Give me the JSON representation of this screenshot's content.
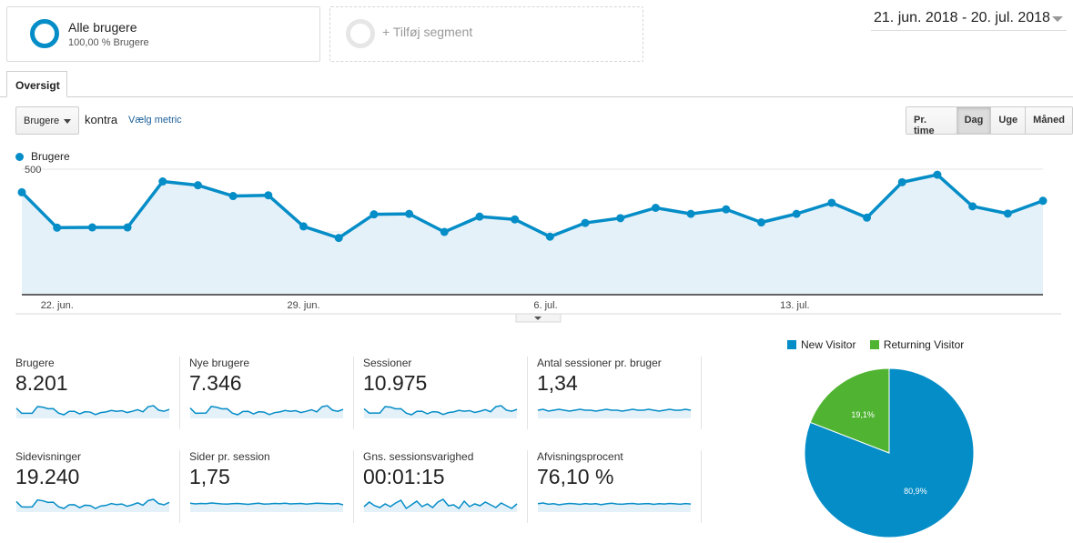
{
  "segments": {
    "all": {
      "title": "Alle brugere",
      "subtitle": "100,00 % Brugere"
    },
    "add_label": "+ Tilføj segment"
  },
  "date_range": "21. jun. 2018 - 20. jul. 2018",
  "tabs": {
    "overview": "Oversigt"
  },
  "controls": {
    "metric_select": "Brugere",
    "vs_label": "kontra",
    "choose_metric": "Vælg metric",
    "periods": [
      "Pr. time",
      "Dag",
      "Uge",
      "Måned"
    ],
    "active_period": "Dag"
  },
  "colors": {
    "accent": "#058dc7",
    "fill": "#e5f1f9",
    "returning": "#50b432"
  },
  "chart_data": [
    {
      "type": "area",
      "series": [
        {
          "name": "Brugere",
          "values": [
            408,
            267,
            268,
            268,
            451,
            436,
            393,
            396,
            272,
            226,
            320,
            322,
            250,
            311,
            300,
            231,
            286,
            305,
            346,
            322,
            340,
            288,
            322,
            366,
            307,
            448,
            478,
            352,
            323,
            374
          ]
        }
      ],
      "x_ticks": [
        "22. jun.",
        "29. jun.",
        "6. jul.",
        "13. jul."
      ],
      "x_tick_indices": [
        1,
        8,
        15,
        22
      ],
      "y_ticks": [
        "500",
        "250"
      ],
      "y_tick_values": [
        500,
        250
      ],
      "ylim": [
        0,
        500
      ]
    },
    {
      "type": "pie",
      "legend": [
        "New Visitor",
        "Returning Visitor"
      ],
      "values": [
        80.9,
        19.1
      ],
      "labels": [
        "80,9%",
        "19,1%"
      ],
      "colors": [
        "#058dc7",
        "#50b432"
      ]
    }
  ],
  "metrics": [
    {
      "label": "Brugere",
      "value": "8.201",
      "spark": [
        408,
        267,
        268,
        268,
        451,
        436,
        393,
        396,
        272,
        226,
        320,
        322,
        250,
        311,
        300,
        231,
        286,
        305,
        346,
        322,
        340,
        288,
        322,
        366,
        307,
        448,
        478,
        352,
        323,
        374
      ]
    },
    {
      "label": "Nye brugere",
      "value": "7.346",
      "spark": [
        380,
        245,
        248,
        250,
        420,
        400,
        360,
        362,
        250,
        208,
        292,
        295,
        230,
        286,
        276,
        212,
        262,
        280,
        318,
        296,
        312,
        264,
        296,
        336,
        282,
        412,
        440,
        324,
        296,
        344
      ]
    },
    {
      "label": "Sessioner",
      "value": "10.975",
      "spark": [
        520,
        360,
        362,
        362,
        600,
        580,
        520,
        524,
        362,
        300,
        428,
        430,
        334,
        414,
        400,
        310,
        380,
        406,
        462,
        430,
        452,
        384,
        430,
        488,
        410,
        598,
        636,
        470,
        430,
        498
      ]
    },
    {
      "label": "Antal sessioner pr. bruger",
      "value": "1,34",
      "spark": [
        1.34,
        1.33,
        1.35,
        1.34,
        1.33,
        1.34,
        1.35,
        1.34,
        1.33,
        1.34,
        1.34,
        1.35,
        1.34,
        1.33,
        1.34,
        1.34,
        1.35,
        1.34,
        1.33,
        1.34,
        1.34,
        1.33,
        1.34,
        1.35,
        1.34,
        1.33,
        1.34,
        1.34,
        1.33,
        1.34
      ]
    },
    {
      "label": "Sidevisninger",
      "value": "19.240",
      "spark": [
        900,
        640,
        630,
        640,
        980,
        940,
        860,
        870,
        640,
        560,
        740,
        745,
        600,
        720,
        700,
        560,
        680,
        710,
        800,
        750,
        780,
        670,
        740,
        840,
        720,
        950,
        1010,
        800,
        740,
        860
      ]
    },
    {
      "label": "Sider pr. session",
      "value": "1,75",
      "spark": [
        1.73,
        1.76,
        1.74,
        1.75,
        1.72,
        1.74,
        1.76,
        1.77,
        1.75,
        1.74,
        1.76,
        1.78,
        1.75,
        1.73,
        1.77,
        1.76,
        1.74,
        1.75,
        1.73,
        1.76,
        1.75,
        1.74,
        1.77,
        1.75,
        1.73,
        1.74,
        1.75,
        1.76,
        1.74,
        1.8
      ]
    },
    {
      "label": "Gns. sessionsvarighed",
      "value": "00:01:15",
      "spark": [
        70,
        80,
        72,
        68,
        76,
        70,
        78,
        84,
        66,
        74,
        82,
        70,
        76,
        68,
        80,
        86,
        72,
        74,
        66,
        82,
        70,
        76,
        72,
        80,
        74,
        68,
        78,
        72,
        66,
        76
      ]
    },
    {
      "label": "Afvisningsprocent",
      "value": "76,10 %",
      "spark": [
        76,
        75.5,
        76.4,
        76,
        76.8,
        76.2,
        75.8,
        76.1,
        76.5,
        75.9,
        76.3,
        76,
        76.7,
        76.1,
        75.7,
        76.2,
        76.4,
        76,
        75.8,
        76.3,
        76.1,
        75.9,
        76.5,
        76,
        76.2,
        75.8,
        76.1,
        76.4,
        75.9,
        76.2
      ]
    }
  ]
}
